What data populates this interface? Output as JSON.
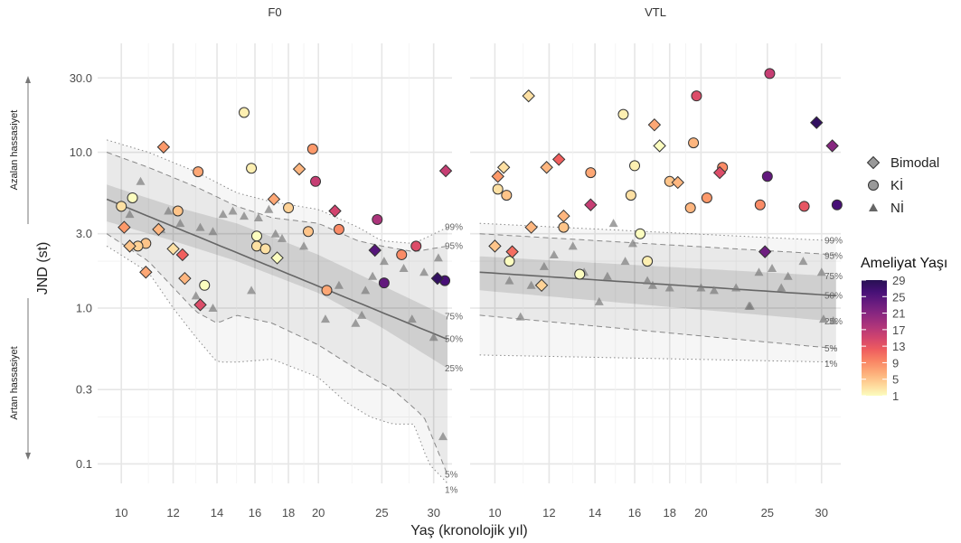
{
  "chart_data": {
    "type": "scatter",
    "ylabel": "JND (st)",
    "xlabel": "Yaş (kronolojik yıl)",
    "y_scale": "log",
    "ylim": [
      0.075,
      50
    ],
    "y_ticks": [
      0.1,
      0.3,
      1.0,
      3.0,
      10.0,
      30.0
    ],
    "y_tick_labels": [
      "0.1",
      "0.3",
      "1.0",
      "3.0",
      "10.0",
      "30.0"
    ],
    "x_scale": "log",
    "x_ticks": [
      10,
      12,
      14,
      16,
      18,
      20,
      25,
      30
    ],
    "x_tick_labels": [
      "10",
      "12",
      "14",
      "16",
      "18",
      "20",
      "25",
      "30"
    ],
    "grid": true,
    "side_labels": {
      "up": "Azalan hassasiyet",
      "down": "Artan hassasiyet"
    },
    "shape_legend": [
      {
        "label": "Bimodal",
        "shape": "diamond"
      },
      {
        "label": "Kİ",
        "shape": "circle"
      },
      {
        "label": "Nİ",
        "shape": "triangle"
      }
    ],
    "color_legend": {
      "title": "Ameliyat Yaşı",
      "ticks": [
        29,
        25,
        21,
        17,
        13,
        9,
        5,
        1
      ],
      "range": [
        1,
        29
      ],
      "colors": [
        "#fcfdbf",
        "#fec98d",
        "#fd9668",
        "#f1605d",
        "#cd4071",
        "#9e2f7f",
        "#721f81",
        "#440f76",
        "#1d1147",
        "#000004"
      ]
    },
    "percentile_labels": [
      "99%",
      "95%",
      "75%",
      "50%",
      "25%",
      "5%",
      "1%"
    ],
    "panels": [
      {
        "title": "F0",
        "xlim": [
          9.2,
          32
        ],
        "median_line": [
          [
            9.5,
            5.0
          ],
          [
            31.5,
            0.63
          ]
        ],
        "band_25_75_upper": [
          [
            9.5,
            6.2
          ],
          [
            12,
            4.5
          ],
          [
            15,
            3.5
          ],
          [
            20,
            2.2
          ],
          [
            25,
            1.4
          ],
          [
            31.5,
            0.88
          ]
        ],
        "band_25_75_lower": [
          [
            9.5,
            3.6
          ],
          [
            12,
            2.7
          ],
          [
            15,
            2.0
          ],
          [
            20,
            1.25
          ],
          [
            25,
            0.75
          ],
          [
            31.5,
            0.41
          ]
        ],
        "band_5_95_upper": [
          [
            9.5,
            10.0
          ],
          [
            11,
            8.0
          ],
          [
            13,
            6.0
          ],
          [
            15,
            4.5
          ],
          [
            17,
            3.8
          ],
          [
            20,
            3.5
          ],
          [
            23,
            2.7
          ],
          [
            25,
            2.5
          ],
          [
            28,
            2.3
          ],
          [
            31.5,
            2.5
          ]
        ],
        "band_5_95_lower": [
          [
            9.5,
            3.0
          ],
          [
            11,
            2.0
          ],
          [
            13,
            0.95
          ],
          [
            14,
            0.8
          ],
          [
            15,
            0.9
          ],
          [
            17,
            0.8
          ],
          [
            20,
            0.58
          ],
          [
            23,
            0.4
          ],
          [
            26,
            0.3
          ],
          [
            29,
            0.2
          ],
          [
            31.5,
            0.085
          ]
        ],
        "band_1_99_upper": [
          [
            9.5,
            12.0
          ],
          [
            11,
            10.0
          ],
          [
            13,
            7.5
          ],
          [
            15,
            5.5
          ],
          [
            17,
            4.8
          ],
          [
            20,
            4.3
          ],
          [
            23,
            3.3
          ],
          [
            25,
            2.7
          ],
          [
            28,
            2.6
          ],
          [
            31.5,
            3.3
          ]
        ],
        "band_1_99_lower": [
          [
            9.5,
            2.5
          ],
          [
            11,
            1.7
          ],
          [
            12,
            1.0
          ],
          [
            13,
            0.65
          ],
          [
            14,
            0.45
          ],
          [
            15,
            0.45
          ],
          [
            17,
            0.47
          ],
          [
            20,
            0.36
          ],
          [
            22,
            0.25
          ],
          [
            24,
            0.2
          ],
          [
            26,
            0.18
          ],
          [
            28,
            0.18
          ],
          [
            29.5,
            0.1
          ],
          [
            31.5,
            0.075
          ]
        ],
        "ni_points": [
          [
            10.3,
            4.0
          ],
          [
            10.7,
            6.5
          ],
          [
            11.5,
            3.2
          ],
          [
            11.8,
            4.2
          ],
          [
            12.3,
            3.5
          ],
          [
            13.2,
            3.3
          ],
          [
            13.8,
            3.1
          ],
          [
            14.3,
            4.0
          ],
          [
            14.8,
            4.2
          ],
          [
            15.4,
            3.9
          ],
          [
            15.8,
            1.3
          ],
          [
            16.2,
            3.8
          ],
          [
            16.8,
            4.3
          ],
          [
            17.2,
            3.0
          ],
          [
            17.6,
            2.8
          ],
          [
            19.0,
            2.5
          ],
          [
            20.5,
            0.85
          ],
          [
            21.5,
            1.4
          ],
          [
            22.8,
            0.8
          ],
          [
            23.3,
            0.9
          ],
          [
            23.6,
            1.3
          ],
          [
            24.2,
            1.6
          ],
          [
            25.2,
            2.0
          ],
          [
            27.0,
            1.8
          ],
          [
            27.8,
            0.85
          ],
          [
            29.0,
            1.7
          ],
          [
            30.0,
            0.65
          ],
          [
            30.5,
            2.1
          ],
          [
            31.0,
            0.15
          ],
          [
            13.0,
            1.2
          ],
          [
            13.8,
            1.0
          ]
        ],
        "ki_points": [
          [
            10.0,
            4.5,
            3
          ],
          [
            10.4,
            5.1,
            1
          ],
          [
            10.9,
            2.6,
            5
          ],
          [
            12.2,
            4.2,
            5
          ],
          [
            13.1,
            7.5,
            7
          ],
          [
            13.4,
            1.4,
            1
          ],
          [
            15.4,
            18.0,
            2
          ],
          [
            15.8,
            7.9,
            2
          ],
          [
            16.1,
            2.9,
            1
          ],
          [
            16.1,
            2.5,
            3
          ],
          [
            16.6,
            2.4,
            3
          ],
          [
            18.0,
            4.4,
            4
          ],
          [
            19.3,
            3.1,
            5
          ],
          [
            19.6,
            10.5,
            8
          ],
          [
            19.8,
            6.5,
            16
          ],
          [
            20.6,
            1.3,
            7
          ],
          [
            21.5,
            3.2,
            9
          ],
          [
            24.6,
            3.7,
            18
          ],
          [
            25.2,
            1.45,
            24
          ],
          [
            26.8,
            2.2,
            9
          ],
          [
            28.2,
            2.5,
            14
          ],
          [
            31.2,
            1.5,
            26
          ],
          [
            10.6,
            2.5,
            4
          ]
        ],
        "bimodal_points": [
          [
            10.1,
            3.3,
            8
          ],
          [
            10.3,
            2.5,
            5
          ],
          [
            10.9,
            1.7,
            7
          ],
          [
            11.4,
            3.2,
            6
          ],
          [
            11.6,
            10.8,
            8
          ],
          [
            12.0,
            2.4,
            3
          ],
          [
            12.4,
            2.2,
            12
          ],
          [
            12.5,
            1.55,
            6
          ],
          [
            13.2,
            1.05,
            14
          ],
          [
            17.1,
            5.0,
            7
          ],
          [
            17.3,
            2.1,
            1
          ],
          [
            18.7,
            7.8,
            6
          ],
          [
            21.2,
            4.2,
            15
          ],
          [
            24.4,
            2.35,
            25
          ],
          [
            30.4,
            1.55,
            28
          ],
          [
            31.3,
            7.6,
            16
          ]
        ]
      },
      {
        "title": "VTL",
        "xlim": [
          9.2,
          32
        ],
        "median_line": [
          [
            9.5,
            1.7
          ],
          [
            31.5,
            1.2
          ]
        ],
        "band_25_75_upper": [
          [
            9.5,
            2.15
          ],
          [
            31.5,
            1.6
          ]
        ],
        "band_25_75_lower": [
          [
            9.5,
            1.3
          ],
          [
            31.5,
            0.82
          ]
        ],
        "band_5_95_upper": [
          [
            9.5,
            3.0
          ],
          [
            31.5,
            2.2
          ]
        ],
        "band_5_95_lower": [
          [
            9.5,
            0.9
          ],
          [
            31.5,
            0.55
          ]
        ],
        "band_1_99_upper": [
          [
            9.5,
            3.5
          ],
          [
            31.5,
            2.7
          ]
        ],
        "band_1_99_lower": [
          [
            9.5,
            0.5
          ],
          [
            31.5,
            0.45
          ]
        ],
        "ni_points": [
          [
            10.5,
            1.5
          ],
          [
            10.9,
            0.88
          ],
          [
            11.3,
            1.4
          ],
          [
            11.8,
            1.85
          ],
          [
            12.2,
            2.2
          ],
          [
            13.0,
            2.5
          ],
          [
            13.5,
            1.7
          ],
          [
            14.2,
            1.1
          ],
          [
            14.6,
            1.6
          ],
          [
            14.9,
            3.5
          ],
          [
            15.5,
            2.0
          ],
          [
            15.9,
            2.6
          ],
          [
            16.7,
            1.5
          ],
          [
            17.0,
            1.4
          ],
          [
            18.0,
            1.35
          ],
          [
            20.0,
            1.35
          ],
          [
            20.9,
            1.3
          ],
          [
            22.5,
            1.35
          ],
          [
            23.5,
            1.03
          ],
          [
            23.6,
            1.03
          ],
          [
            24.3,
            1.7
          ],
          [
            25.4,
            1.8
          ],
          [
            26.2,
            1.35
          ],
          [
            26.8,
            1.6
          ],
          [
            28.2,
            2.0
          ],
          [
            30.0,
            1.7
          ],
          [
            30.2,
            0.85
          ],
          [
            31.2,
            0.83
          ]
        ],
        "ki_points": [
          [
            10.1,
            5.8,
            3
          ],
          [
            10.4,
            5.3,
            5
          ],
          [
            10.5,
            2.0,
            1
          ],
          [
            12.6,
            3.3,
            5
          ],
          [
            13.3,
            1.65,
            1
          ],
          [
            13.8,
            7.4,
            7
          ],
          [
            15.4,
            17.5,
            2
          ],
          [
            15.8,
            5.3,
            3
          ],
          [
            16.0,
            8.2,
            2
          ],
          [
            16.3,
            3.0,
            1
          ],
          [
            16.7,
            2.0,
            2
          ],
          [
            18.0,
            6.5,
            5
          ],
          [
            19.3,
            4.4,
            6
          ],
          [
            19.5,
            11.5,
            6
          ],
          [
            19.7,
            23.0,
            14
          ],
          [
            20.4,
            5.1,
            8
          ],
          [
            21.5,
            8.0,
            9
          ],
          [
            24.4,
            4.6,
            9
          ],
          [
            25.0,
            7.0,
            24
          ],
          [
            25.2,
            32.0,
            16
          ],
          [
            28.3,
            4.5,
            13
          ],
          [
            31.6,
            4.6,
            26
          ]
        ],
        "bimodal_points": [
          [
            10.0,
            2.5,
            5
          ],
          [
            10.1,
            7.0,
            8
          ],
          [
            10.3,
            8.0,
            3
          ],
          [
            10.6,
            2.3,
            11
          ],
          [
            11.2,
            23.0,
            3
          ],
          [
            11.3,
            3.3,
            6
          ],
          [
            11.7,
            1.4,
            4
          ],
          [
            11.9,
            8.0,
            6
          ],
          [
            12.4,
            9.0,
            12
          ],
          [
            12.6,
            3.9,
            6
          ],
          [
            13.8,
            4.6,
            16
          ],
          [
            17.1,
            15.0,
            7
          ],
          [
            17.4,
            11.0,
            1
          ],
          [
            18.5,
            6.4,
            6
          ],
          [
            21.3,
            7.4,
            14
          ],
          [
            24.8,
            2.3,
            23
          ],
          [
            29.5,
            15.5,
            28
          ],
          [
            31.1,
            11.0,
            21
          ]
        ]
      }
    ]
  }
}
